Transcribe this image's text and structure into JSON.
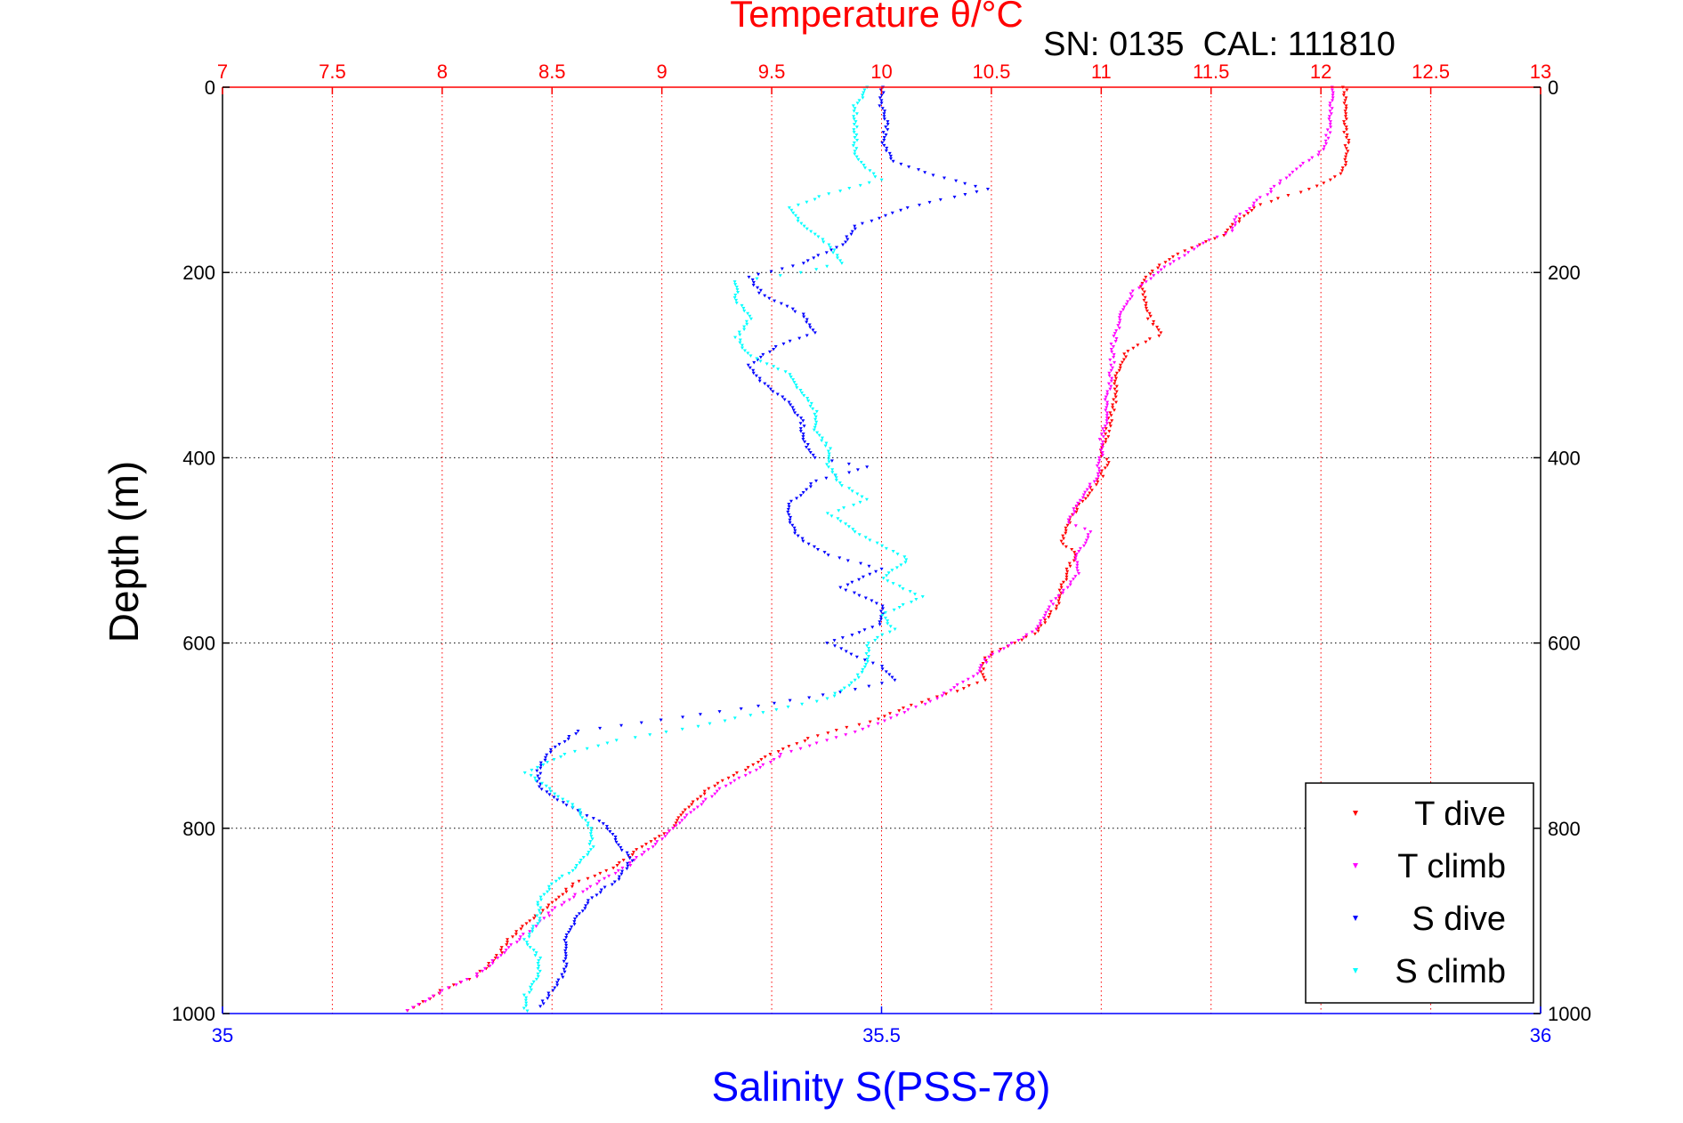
{
  "chart_data": {
    "type": "scatter",
    "title": "Temperature θ/°C",
    "subtitle": "SN: 0135  CAL: 111810",
    "top_axis": {
      "label": "Temperature θ/°C",
      "range": [
        7,
        13
      ],
      "ticks": [
        "7",
        "7.5",
        "8",
        "8.5",
        "9",
        "9.5",
        "10",
        "10.5",
        "11",
        "11.5",
        "12",
        "12.5",
        "13"
      ],
      "color": "#ff0000"
    },
    "bottom_axis": {
      "label": "Salinity S(PSS-78)",
      "range": [
        35,
        36
      ],
      "ticks": [
        "35",
        "35.5",
        "36"
      ],
      "color": "#0000ff"
    },
    "y_axis": {
      "label": "Depth (m)",
      "range": [
        0,
        1000
      ],
      "reversed": true,
      "ticks": [
        "0",
        "200",
        "400",
        "600",
        "800",
        "1000"
      ]
    },
    "grid": true,
    "legend_position": "bottom-right",
    "legend": [
      {
        "label": "T dive",
        "color": "#ff0000"
      },
      {
        "label": "T climb",
        "color": "#ff00ff"
      },
      {
        "label": "S dive",
        "color": "#0000ff"
      },
      {
        "label": "S climb",
        "color": "#00ffff"
      }
    ],
    "series": [
      {
        "name": "T dive",
        "axis": "temperature",
        "color": "#ff0000",
        "points": [
          [
            12.11,
            0
          ],
          [
            12.11,
            20
          ],
          [
            12.11,
            40
          ],
          [
            12.12,
            60
          ],
          [
            12.11,
            75
          ],
          [
            12.1,
            90
          ],
          [
            12.05,
            100
          ],
          [
            11.95,
            110
          ],
          [
            11.8,
            120
          ],
          [
            11.7,
            130
          ],
          [
            11.62,
            145
          ],
          [
            11.55,
            160
          ],
          [
            11.45,
            170
          ],
          [
            11.35,
            180
          ],
          [
            11.25,
            195
          ],
          [
            11.2,
            205
          ],
          [
            11.18,
            215
          ],
          [
            11.2,
            230
          ],
          [
            11.22,
            250
          ],
          [
            11.28,
            265
          ],
          [
            11.2,
            275
          ],
          [
            11.12,
            285
          ],
          [
            11.08,
            300
          ],
          [
            11.07,
            320
          ],
          [
            11.06,
            340
          ],
          [
            11.04,
            360
          ],
          [
            11.02,
            380
          ],
          [
            11.0,
            395
          ],
          [
            11.03,
            405
          ],
          [
            11.0,
            420
          ],
          [
            10.95,
            435
          ],
          [
            10.9,
            450
          ],
          [
            10.85,
            470
          ],
          [
            10.82,
            490
          ],
          [
            10.88,
            505
          ],
          [
            10.85,
            520
          ],
          [
            10.82,
            540
          ],
          [
            10.8,
            560
          ],
          [
            10.75,
            575
          ],
          [
            10.7,
            590
          ],
          [
            10.6,
            600
          ],
          [
            10.5,
            610
          ],
          [
            10.45,
            625
          ],
          [
            10.48,
            640
          ],
          [
            10.3,
            655
          ],
          [
            10.1,
            670
          ],
          [
            9.95,
            685
          ],
          [
            9.7,
            700
          ],
          [
            9.5,
            720
          ],
          [
            9.35,
            740
          ],
          [
            9.2,
            760
          ],
          [
            9.1,
            780
          ],
          [
            9.05,
            800
          ],
          [
            8.9,
            820
          ],
          [
            8.8,
            840
          ],
          [
            8.6,
            860
          ],
          [
            8.5,
            880
          ],
          [
            8.4,
            900
          ],
          [
            8.3,
            920
          ],
          [
            8.25,
            940
          ],
          [
            8.15,
            960
          ],
          [
            8.0,
            975
          ],
          [
            7.9,
            990
          ],
          [
            7.8,
            1000
          ]
        ]
      },
      {
        "name": "T climb",
        "axis": "temperature",
        "color": "#ff00ff",
        "points": [
          [
            12.05,
            0
          ],
          [
            12.05,
            20
          ],
          [
            12.04,
            40
          ],
          [
            12.03,
            55
          ],
          [
            12.0,
            70
          ],
          [
            11.9,
            85
          ],
          [
            11.85,
            95
          ],
          [
            11.78,
            110
          ],
          [
            11.7,
            125
          ],
          [
            11.62,
            140
          ],
          [
            11.6,
            155
          ],
          [
            11.5,
            165
          ],
          [
            11.42,
            175
          ],
          [
            11.35,
            185
          ],
          [
            11.25,
            200
          ],
          [
            11.2,
            210
          ],
          [
            11.15,
            220
          ],
          [
            11.1,
            240
          ],
          [
            11.08,
            260
          ],
          [
            11.05,
            280
          ],
          [
            11.05,
            300
          ],
          [
            11.04,
            320
          ],
          [
            11.02,
            340
          ],
          [
            11.02,
            360
          ],
          [
            11.0,
            380
          ],
          [
            11.0,
            400
          ],
          [
            10.98,
            420
          ],
          [
            10.92,
            440
          ],
          [
            10.88,
            455
          ],
          [
            10.85,
            470
          ],
          [
            10.95,
            480
          ],
          [
            10.92,
            495
          ],
          [
            10.88,
            510
          ],
          [
            10.9,
            525
          ],
          [
            10.85,
            540
          ],
          [
            10.78,
            555
          ],
          [
            10.75,
            570
          ],
          [
            10.7,
            585
          ],
          [
            10.6,
            600
          ],
          [
            10.48,
            615
          ],
          [
            10.45,
            630
          ],
          [
            10.35,
            645
          ],
          [
            10.25,
            660
          ],
          [
            10.1,
            675
          ],
          [
            9.95,
            690
          ],
          [
            9.75,
            705
          ],
          [
            9.55,
            720
          ],
          [
            9.4,
            740
          ],
          [
            9.25,
            760
          ],
          [
            9.15,
            780
          ],
          [
            9.05,
            800
          ],
          [
            8.95,
            820
          ],
          [
            8.85,
            840
          ],
          [
            8.7,
            860
          ],
          [
            8.55,
            880
          ],
          [
            8.45,
            900
          ],
          [
            8.35,
            920
          ],
          [
            8.25,
            940
          ],
          [
            8.15,
            960
          ],
          [
            8.0,
            975
          ],
          [
            7.9,
            990
          ],
          [
            7.82,
            1000
          ]
        ]
      },
      {
        "name": "S dive",
        "axis": "salinity",
        "color": "#0000ff",
        "points": [
          [
            35.5,
            0
          ],
          [
            35.5,
            20
          ],
          [
            35.505,
            40
          ],
          [
            35.5,
            60
          ],
          [
            35.51,
            80
          ],
          [
            35.54,
            95
          ],
          [
            35.58,
            110
          ],
          [
            35.52,
            130
          ],
          [
            35.48,
            150
          ],
          [
            35.47,
            170
          ],
          [
            35.44,
            190
          ],
          [
            35.4,
            205
          ],
          [
            35.41,
            225
          ],
          [
            35.44,
            245
          ],
          [
            35.45,
            265
          ],
          [
            35.42,
            280
          ],
          [
            35.4,
            300
          ],
          [
            35.41,
            320
          ],
          [
            35.43,
            340
          ],
          [
            35.44,
            360
          ],
          [
            35.44,
            380
          ],
          [
            35.45,
            400
          ],
          [
            35.49,
            410
          ],
          [
            35.45,
            425
          ],
          [
            35.43,
            450
          ],
          [
            35.43,
            470
          ],
          [
            35.44,
            490
          ],
          [
            35.46,
            505
          ],
          [
            35.5,
            520
          ],
          [
            35.47,
            540
          ],
          [
            35.5,
            560
          ],
          [
            35.5,
            580
          ],
          [
            35.46,
            600
          ],
          [
            35.48,
            615
          ],
          [
            35.5,
            625
          ],
          [
            35.51,
            640
          ],
          [
            35.48,
            650
          ],
          [
            35.42,
            665
          ],
          [
            35.35,
            680
          ],
          [
            35.27,
            695
          ],
          [
            35.25,
            715
          ],
          [
            35.24,
            735
          ],
          [
            35.24,
            755
          ],
          [
            35.26,
            775
          ],
          [
            35.29,
            795
          ],
          [
            35.3,
            815
          ],
          [
            35.31,
            835
          ],
          [
            35.3,
            855
          ],
          [
            35.28,
            875
          ],
          [
            35.27,
            895
          ],
          [
            35.26,
            915
          ],
          [
            35.26,
            935
          ],
          [
            35.26,
            955
          ],
          [
            35.25,
            975
          ],
          [
            35.24,
            995
          ]
        ]
      },
      {
        "name": "S climb",
        "axis": "salinity",
        "color": "#00ffff",
        "points": [
          [
            35.49,
            0
          ],
          [
            35.48,
            20
          ],
          [
            35.48,
            40
          ],
          [
            35.48,
            60
          ],
          [
            35.48,
            75
          ],
          [
            35.49,
            90
          ],
          [
            35.5,
            100
          ],
          [
            35.46,
            115
          ],
          [
            35.43,
            130
          ],
          [
            35.44,
            150
          ],
          [
            35.46,
            170
          ],
          [
            35.47,
            190
          ],
          [
            35.44,
            200
          ],
          [
            35.39,
            210
          ],
          [
            35.39,
            230
          ],
          [
            35.4,
            250
          ],
          [
            35.39,
            270
          ],
          [
            35.4,
            290
          ],
          [
            35.43,
            310
          ],
          [
            35.44,
            330
          ],
          [
            35.45,
            350
          ],
          [
            35.45,
            370
          ],
          [
            35.46,
            390
          ],
          [
            35.46,
            410
          ],
          [
            35.47,
            430
          ],
          [
            35.49,
            445
          ],
          [
            35.46,
            460
          ],
          [
            35.48,
            480
          ],
          [
            35.5,
            495
          ],
          [
            35.52,
            510
          ],
          [
            35.5,
            530
          ],
          [
            35.53,
            550
          ],
          [
            35.5,
            570
          ],
          [
            35.51,
            585
          ],
          [
            35.49,
            600
          ],
          [
            35.49,
            620
          ],
          [
            35.48,
            640
          ],
          [
            35.46,
            660
          ],
          [
            35.41,
            675
          ],
          [
            35.36,
            690
          ],
          [
            35.3,
            705
          ],
          [
            35.26,
            720
          ],
          [
            35.23,
            740
          ],
          [
            35.25,
            760
          ],
          [
            35.27,
            780
          ],
          [
            35.28,
            800
          ],
          [
            35.28,
            820
          ],
          [
            35.27,
            840
          ],
          [
            35.25,
            860
          ],
          [
            35.24,
            880
          ],
          [
            35.24,
            900
          ],
          [
            35.23,
            920
          ],
          [
            35.24,
            940
          ],
          [
            35.24,
            960
          ],
          [
            35.23,
            980
          ],
          [
            35.23,
            1000
          ]
        ]
      }
    ]
  }
}
